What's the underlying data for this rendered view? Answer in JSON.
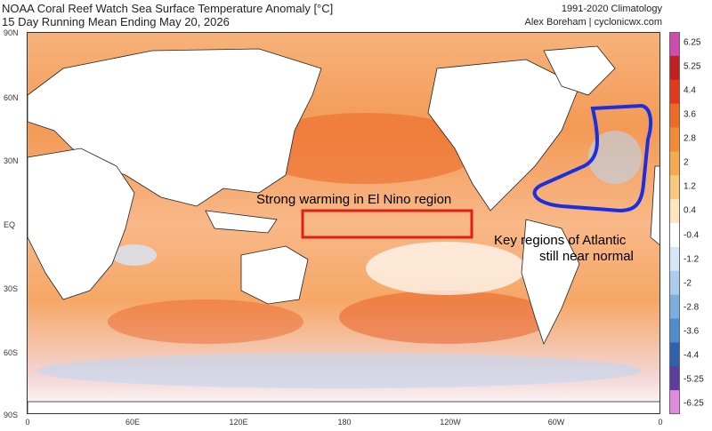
{
  "header": {
    "title_line1": "NOAA Coral Reef Watch Sea Surface Temperature Anomaly [°C]",
    "title_line2": "15 Day Running Mean Ending May 20, 2026",
    "credit_line1": "1991-2020 Climatology",
    "credit_line2": "Alex Boreham | cyclonicwx.com"
  },
  "axes": {
    "lat_ticks": [
      "90N",
      "60N",
      "30N",
      "EQ",
      "30S",
      "60S",
      "90S"
    ],
    "lon_ticks": [
      "0",
      "60E",
      "120E",
      "180",
      "120W",
      "60W",
      "0"
    ]
  },
  "colorbar": {
    "levels": [
      "6.25",
      "5.25",
      "4.4",
      "3.6",
      "2.8",
      "2",
      "1.2",
      "0.4",
      "-0.4",
      "-1.2",
      "-2",
      "-2.8",
      "-3.6",
      "-4.4",
      "-5.25",
      "-6.25"
    ],
    "colors": [
      "#d04bb0",
      "#c21f1f",
      "#e03a1a",
      "#ee6a22",
      "#f48a34",
      "#f7a94e",
      "#fbc97c",
      "#fde6bf",
      "#ffffff",
      "#d5e6f7",
      "#a9cdee",
      "#7aaedf",
      "#4f8bcf",
      "#3060b0",
      "#5b3fa0",
      "#e38ae0"
    ]
  },
  "annotations": {
    "enso_text": "Strong warming in El Nino region",
    "atlantic_text_line1": "Key regions of Atlantic",
    "atlantic_text_line2": "still near normal",
    "enso_box_color": "#e02010",
    "atlantic_outline_color": "#1a2fe0"
  }
}
